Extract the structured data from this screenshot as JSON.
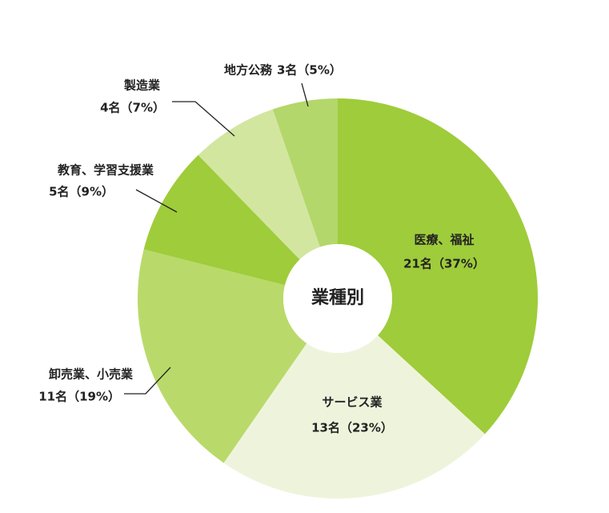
{
  "chart_data": {
    "type": "donut",
    "title": "業種別",
    "categories": [
      "医療、福祉",
      "サービス業",
      "卸売業、小売業",
      "教育、学習支援業",
      "製造業",
      "地方公務"
    ],
    "values": [
      21,
      13,
      11,
      5,
      4,
      3
    ],
    "value_labels": [
      "21名（37%）",
      "13名（23%）",
      "11名（19%）",
      "5名（9%）",
      "4名（7%）",
      "3名（5%）"
    ],
    "colors": [
      "#9fcc3a",
      "#eef4dc",
      "#b9da6a",
      "#9fcc3a",
      "#d2e6a0",
      "#b3d76a"
    ],
    "title_color": "#8cc43c"
  }
}
